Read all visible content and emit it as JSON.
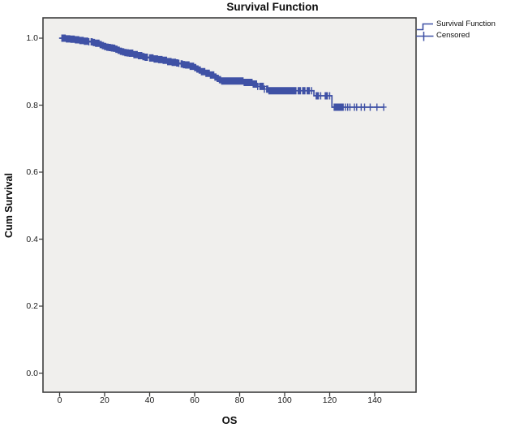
{
  "title": "Survival Function",
  "axes": {
    "x_label": "OS",
    "y_label": "Cum Survival",
    "x_tick_labels": [
      "0",
      "20",
      "40",
      "60",
      "80",
      "100",
      "120",
      "140"
    ],
    "y_tick_labels": [
      "0.0",
      "0.2",
      "0.4",
      "0.6",
      "0.8",
      "1.0"
    ]
  },
  "legend": {
    "items": [
      {
        "glyph": "step-line",
        "label": "Survival Function"
      },
      {
        "glyph": "plus-marker",
        "label": "Censored"
      }
    ]
  },
  "colors": {
    "series": "#3F51A5",
    "plot_background": "#F0EFED",
    "plot_border": "#3E3E3E",
    "tick": "#3E3E3E"
  },
  "chart_data": {
    "type": "line",
    "subtype": "kaplan-meier-step",
    "title": "Survival Function",
    "xlabel": "OS",
    "ylabel": "Cum Survival",
    "xlim": [
      -7.4,
      158.4
    ],
    "ylim": [
      -0.057,
      1.061
    ],
    "x_ticks": [
      0,
      20,
      40,
      60,
      80,
      100,
      120,
      140
    ],
    "y_ticks": [
      0.0,
      0.2,
      0.4,
      0.6,
      0.8,
      1.0
    ],
    "grid": false,
    "legend_position": "top-right",
    "series": [
      {
        "name": "Survival Function",
        "color": "#3F51A5",
        "end_time": 144,
        "step_points": [
          [
            0,
            1.0
          ],
          [
            3,
            0.998
          ],
          [
            5,
            0.997
          ],
          [
            7,
            0.995
          ],
          [
            9,
            0.993
          ],
          [
            11,
            0.991
          ],
          [
            13,
            0.989
          ],
          [
            15,
            0.987
          ],
          [
            16,
            0.985
          ],
          [
            18,
            0.981
          ],
          [
            19,
            0.978
          ],
          [
            20,
            0.975
          ],
          [
            21,
            0.973
          ],
          [
            22,
            0.972
          ],
          [
            23,
            0.971
          ],
          [
            24,
            0.97
          ],
          [
            25,
            0.967
          ],
          [
            26,
            0.964
          ],
          [
            27,
            0.961
          ],
          [
            28,
            0.959
          ],
          [
            29,
            0.957
          ],
          [
            30,
            0.956
          ],
          [
            31,
            0.955
          ],
          [
            33,
            0.951
          ],
          [
            35,
            0.948
          ],
          [
            37,
            0.945
          ],
          [
            38,
            0.943
          ],
          [
            40,
            0.941
          ],
          [
            42,
            0.938
          ],
          [
            44,
            0.936
          ],
          [
            46,
            0.934
          ],
          [
            48,
            0.93
          ],
          [
            50,
            0.928
          ],
          [
            52,
            0.926
          ],
          [
            53,
            0.925
          ],
          [
            54,
            0.923
          ],
          [
            55,
            0.921
          ],
          [
            56,
            0.92
          ],
          [
            58,
            0.916
          ],
          [
            60,
            0.912
          ],
          [
            61,
            0.908
          ],
          [
            62,
            0.905
          ],
          [
            63,
            0.9
          ],
          [
            65,
            0.895
          ],
          [
            67,
            0.89
          ],
          [
            69,
            0.884
          ],
          [
            70,
            0.88
          ],
          [
            71,
            0.876
          ],
          [
            72,
            0.872
          ],
          [
            82,
            0.868
          ],
          [
            86,
            0.863
          ],
          [
            88,
            0.856
          ],
          [
            91,
            0.848
          ],
          [
            93,
            0.843
          ],
          [
            113,
            0.828
          ],
          [
            121,
            0.794
          ]
        ]
      }
    ],
    "censored": {
      "name": "Censored",
      "marker": "plus",
      "times": [
        1,
        1.5,
        2,
        2.5,
        3,
        3.5,
        4,
        4.5,
        5,
        5.5,
        6,
        6.5,
        7,
        7.5,
        8,
        8.5,
        9,
        9.5,
        10,
        10.5,
        11,
        11.5,
        12,
        12.5,
        13,
        14,
        14.5,
        15,
        15.5,
        16,
        16.5,
        17,
        17.5,
        18,
        18.5,
        19,
        19.5,
        20,
        20.5,
        21,
        21.5,
        22,
        22.5,
        23,
        23.5,
        24,
        24.5,
        25,
        25.5,
        26,
        26.5,
        27,
        27.5,
        28,
        28.5,
        29,
        29.5,
        30,
        30.5,
        31,
        31.5,
        32,
        32.5,
        33,
        33.5,
        34,
        34.5,
        35,
        35.5,
        36,
        36.5,
        37,
        37.5,
        38,
        38.5,
        39,
        40,
        40.5,
        41,
        41.5,
        42,
        42.5,
        43,
        43.5,
        44,
        44.5,
        45,
        45.5,
        46,
        46.5,
        47,
        47.5,
        48,
        48.5,
        49,
        49.5,
        50,
        50.5,
        51,
        51.5,
        52,
        52.5,
        53,
        54,
        54.5,
        55,
        55.5,
        56,
        56.5,
        57,
        57.5,
        58,
        58.5,
        59,
        59.5,
        60,
        60.5,
        61,
        61.5,
        62,
        62.5,
        63,
        63.5,
        64,
        64.5,
        65,
        65.5,
        66,
        66.5,
        67,
        67.5,
        68,
        68.5,
        69,
        69.5,
        70,
        70.5,
        71,
        71.5,
        72,
        72.5,
        73,
        73.5,
        74,
        74.5,
        75,
        75.5,
        76,
        76.5,
        77,
        77.5,
        78,
        78.5,
        79,
        79.5,
        80,
        80.5,
        81,
        81.5,
        82,
        82.5,
        83,
        83.5,
        84,
        84.5,
        85,
        85.5,
        86,
        86.5,
        87,
        87.5,
        88,
        89,
        89.5,
        90,
        90.5,
        91,
        92,
        92.5,
        93,
        93.5,
        94,
        94.5,
        95,
        95.5,
        96,
        96.5,
        97,
        97.5,
        98,
        98.5,
        99,
        99.5,
        100,
        100.5,
        101,
        101.5,
        102,
        102.5,
        103,
        103.5,
        104,
        104.5,
        105,
        106,
        106.5,
        107,
        108,
        108.5,
        109,
        110,
        110.5,
        111,
        112,
        114,
        114.5,
        115,
        116,
        118,
        118.5,
        119,
        120,
        122,
        122.5,
        123,
        123.5,
        124,
        124.5,
        125,
        125.5,
        126,
        127,
        128,
        129,
        131,
        132,
        134,
        135.5,
        138,
        141,
        144
      ]
    }
  }
}
